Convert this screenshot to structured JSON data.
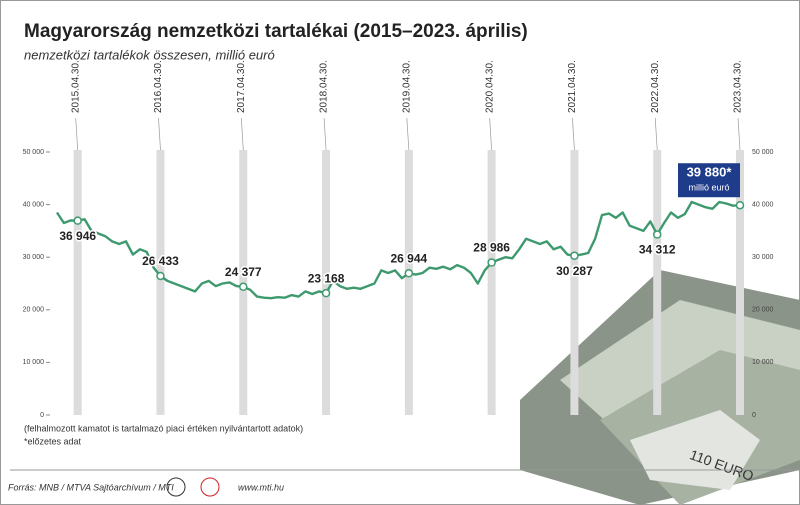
{
  "chart_data": {
    "type": "line",
    "title": "Magyarország nemzetközi tartalékai (2015–2023. április)",
    "subtitle": "nemzetközi tartalékok összesen, millió euró",
    "categories": [
      null,
      null,
      null,
      "2015.04.30.",
      null,
      null,
      null,
      null,
      null,
      null,
      null,
      null,
      null,
      null,
      null,
      "2016.04.30.",
      null,
      null,
      null,
      null,
      null,
      null,
      null,
      null,
      null,
      null,
      null,
      "2017.04.30.",
      null,
      null,
      null,
      null,
      null,
      null,
      null,
      null,
      null,
      null,
      null,
      "2018.04.30.",
      null,
      null,
      null,
      null,
      null,
      null,
      null,
      null,
      null,
      null,
      null,
      "2019.04.30.",
      null,
      null,
      null,
      null,
      null,
      null,
      null,
      null,
      null,
      null,
      null,
      "2020.04.30.",
      null,
      null,
      null,
      null,
      null,
      null,
      null,
      null,
      null,
      null,
      null,
      "2021.04.30.",
      null,
      null,
      null,
      null,
      null,
      null,
      null,
      null,
      null,
      null,
      null,
      "2022.04.30.",
      null,
      null,
      null,
      null,
      null,
      null,
      null,
      null,
      null,
      null,
      null,
      "2023.04.30."
    ],
    "series": [
      {
        "name": "nemzetközi tartalékok",
        "color": "#3e9a6e",
        "values": [
          38500,
          36500,
          37000,
          36946,
          37200,
          35000,
          34500,
          34000,
          33000,
          32500,
          33000,
          30500,
          31500,
          31000,
          28000,
          26433,
          25500,
          25000,
          24500,
          24000,
          23500,
          25000,
          25500,
          24500,
          25000,
          25200,
          24500,
          24377,
          23800,
          22500,
          22300,
          22200,
          22400,
          22300,
          22800,
          22500,
          23500,
          23000,
          23500,
          23168,
          25500,
          24500,
          24000,
          24200,
          24000,
          24500,
          25000,
          27500,
          27000,
          27500,
          26000,
          26944,
          26700,
          27000,
          28000,
          27800,
          28200,
          27700,
          28500,
          28000,
          27000,
          25000,
          27500,
          28986,
          29500,
          30000,
          29800,
          31500,
          33500,
          33000,
          32500,
          33000,
          31500,
          32000,
          30500,
          30287,
          30500,
          30800,
          33500,
          38000,
          38300,
          37500,
          38500,
          36000,
          35500,
          35000,
          36800,
          34312,
          36500,
          38500,
          37500,
          38200,
          40500,
          40000,
          39500,
          39200,
          40500,
          40200,
          39800,
          39880
        ],
        "value_labels": [
          null,
          null,
          null,
          "36 946",
          null,
          null,
          null,
          null,
          null,
          null,
          null,
          null,
          null,
          null,
          null,
          "26 433",
          null,
          null,
          null,
          null,
          null,
          null,
          null,
          null,
          null,
          null,
          null,
          "24 377",
          null,
          null,
          null,
          null,
          null,
          null,
          null,
          null,
          null,
          null,
          null,
          "23 168",
          null,
          null,
          null,
          null,
          null,
          null,
          null,
          null,
          null,
          null,
          null,
          "26 944",
          null,
          null,
          null,
          null,
          null,
          null,
          null,
          null,
          null,
          null,
          null,
          "28 986",
          null,
          null,
          null,
          null,
          null,
          null,
          null,
          null,
          null,
          null,
          null,
          "30 287",
          null,
          null,
          null,
          null,
          null,
          null,
          null,
          null,
          null,
          null,
          null,
          "34 312",
          null,
          null,
          null,
          null,
          null,
          null,
          null,
          null,
          null,
          null,
          null,
          "39 880*"
        ]
      }
    ],
    "ylim": [
      0,
      50000
    ],
    "yticks": [
      0,
      {
        "value": 10000,
        "label": "10 000"
      },
      {
        "value": 20000,
        "label": "20 000"
      },
      {
        "value": 30000,
        "label": "30 000"
      },
      {
        "value": 40000,
        "label": "40 000"
      },
      {
        "value": 50000,
        "label": "50 000"
      }
    ],
    "annotations": [
      "millió euró",
      "(felhalmozott kamatot is tartalmazó piaci értéken nyilvántartott adatok)",
      "*előzetes adat"
    ],
    "source": "Forrás: MNB / MTVA Sajtóarchívum / MTI",
    "website": "www.mti.hu"
  }
}
